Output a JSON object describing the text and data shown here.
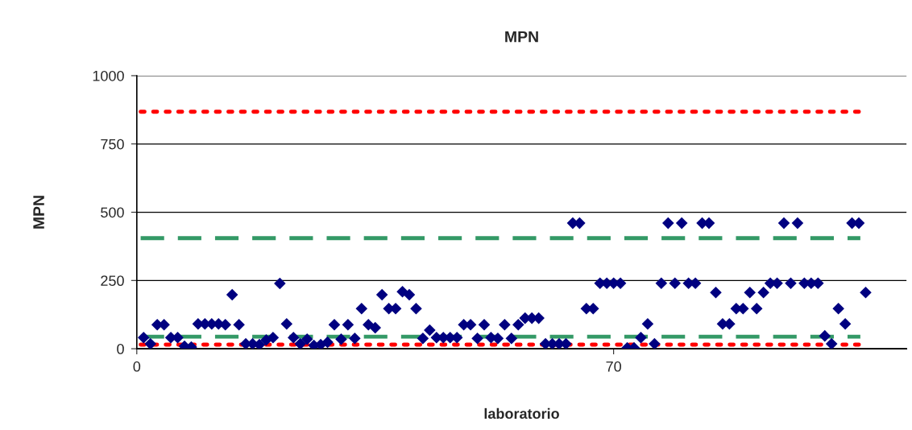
{
  "chart_data": {
    "type": "scatter",
    "title": "MPN",
    "xlabel": "laboratorio",
    "ylabel": "MPN",
    "x": [
      1,
      2,
      3,
      4,
      5,
      6,
      7,
      8,
      9,
      10,
      11,
      12,
      13,
      14,
      15,
      16,
      17,
      18,
      19,
      20,
      21,
      22,
      23,
      24,
      25,
      26,
      27,
      28,
      29,
      30,
      31,
      32,
      33,
      34,
      35,
      36,
      37,
      38,
      39,
      40,
      41,
      42,
      43,
      44,
      45,
      46,
      47,
      48,
      49,
      50,
      51,
      52,
      53,
      54,
      55,
      56,
      57,
      58,
      59,
      60,
      61,
      62,
      63,
      64,
      65,
      66,
      67,
      68,
      69,
      70,
      71,
      72,
      73,
      74,
      75,
      76,
      77,
      78,
      79,
      80,
      81,
      82,
      83,
      84,
      85,
      86,
      87,
      88,
      89,
      90,
      91,
      92,
      93,
      94,
      95,
      96,
      97,
      98,
      99,
      100,
      101,
      102,
      103,
      104,
      105,
      106,
      107
    ],
    "series": [
      {
        "color": "#000080",
        "values": [
          41,
          18,
          88,
          88,
          41,
          41,
          9,
          6,
          91,
          91,
          91,
          91,
          88,
          198,
          88,
          18,
          18,
          15,
          32,
          41,
          239,
          91,
          41,
          18,
          35,
          12,
          15,
          24,
          88,
          35,
          88,
          38,
          147,
          88,
          77,
          198,
          147,
          147,
          209,
          198,
          147,
          38,
          68,
          41,
          41,
          41,
          41,
          88,
          88,
          38,
          88,
          41,
          38,
          88,
          38,
          88,
          112,
          112,
          112,
          18,
          18,
          18,
          18,
          460,
          460,
          147,
          147,
          240,
          240,
          240,
          240,
          3,
          3,
          41,
          91,
          18,
          240,
          460,
          240,
          460,
          240,
          240,
          460,
          460,
          206,
          91,
          91,
          147,
          147,
          206,
          147,
          206,
          240,
          240,
          460,
          240,
          460,
          240,
          240,
          240,
          47,
          18,
          147,
          91,
          460,
          460,
          206
        ]
      }
    ],
    "marker": "diamond",
    "xlim": [
      0,
      113
    ],
    "xticks": [
      0,
      70
    ],
    "ylim": [
      0,
      1000
    ],
    "yticks": [
      0,
      250,
      500,
      750,
      1000
    ],
    "grid": "y",
    "ref_lines": [
      {
        "axis": "y",
        "value": 868,
        "color": "#ff0000",
        "line_style": "dotted"
      },
      {
        "axis": "y",
        "value": 15,
        "color": "#ff0000",
        "line_style": "dotted"
      },
      {
        "axis": "y",
        "value": 405,
        "color": "#339966",
        "line_style": "dashed"
      },
      {
        "axis": "y",
        "value": 44,
        "color": "#339966",
        "line_style": "dashed"
      }
    ]
  }
}
